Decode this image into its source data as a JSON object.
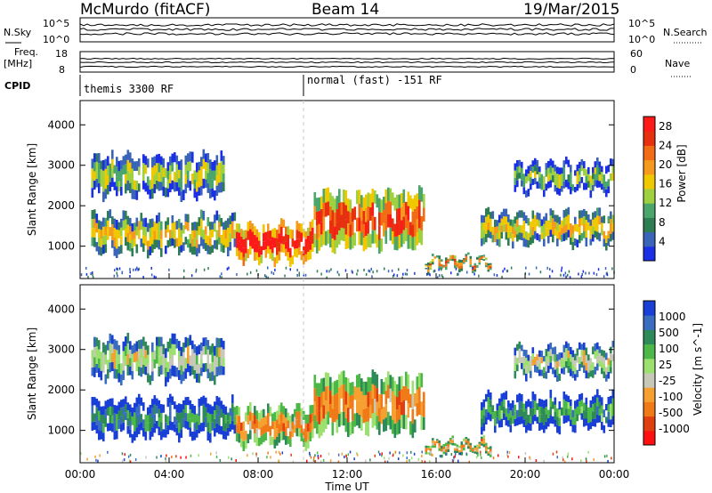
{
  "header": {
    "radar": "McMurdo (fitACF)",
    "beam": "Beam 14",
    "date": "19/Mar/2015"
  },
  "status_panels": {
    "nsky_label": "N.Sky",
    "nsearch_label": "N.Search",
    "noise_ticks_left": [
      "10^5",
      "10^0"
    ],
    "noise_ticks_right": [
      "10^5",
      "10^0"
    ],
    "freq_label_top": "Freq.",
    "freq_label_unit": "[MHz]",
    "freq_ticks": [
      "18",
      "8"
    ],
    "nave_label": "Nave",
    "nave_ticks": [
      "60",
      "0"
    ],
    "cpid_label": "CPID",
    "cpid_modes": [
      "themis 3300 RF",
      "normal (fast) -151 RF"
    ]
  },
  "colors": {
    "power_scale": [
      "#1a2fe6",
      "#3a64b8",
      "#2f7d52",
      "#4aa66a",
      "#9fd040",
      "#f0c800",
      "#f59a1e",
      "#f26c15",
      "#e63010",
      "#ff1a1a"
    ],
    "velocity_scale": [
      "#1a3fd6",
      "#3a6cc0",
      "#2f8a5a",
      "#4cb848",
      "#9ce070",
      "#c8c8b8",
      "#f5a030",
      "#f07a18",
      "#e04010",
      "#ff1010"
    ]
  },
  "chart_data": [
    {
      "type": "heatmap",
      "name": "power",
      "ylabel": "Slant Range [km]",
      "yticks": [
        "1000",
        "2000",
        "3000",
        "4000"
      ],
      "ylim": [
        200,
        4600
      ],
      "colorbar_label": "Power [dB]",
      "colorbar_ticks": [
        "4",
        "8",
        "12",
        "16",
        "20",
        "24",
        "28"
      ],
      "colorbar_range": [
        0,
        30
      ],
      "bands": [
        {
          "start_h": 0.5,
          "end_h": 6.5,
          "range_km": [
            2200,
            3300
          ],
          "level": 0.45
        },
        {
          "start_h": 0.5,
          "end_h": 7.0,
          "range_km": [
            800,
            1800
          ],
          "level": 0.55
        },
        {
          "start_h": 7.0,
          "end_h": 10.5,
          "range_km": [
            600,
            1600
          ],
          "level": 0.95
        },
        {
          "start_h": 10.5,
          "end_h": 15.5,
          "range_km": [
            900,
            2400
          ],
          "level": 0.8
        },
        {
          "start_h": 15.5,
          "end_h": 18.5,
          "range_km": [
            400,
            800
          ],
          "level": 0.7
        },
        {
          "start_h": 18.0,
          "end_h": 24.0,
          "range_km": [
            1000,
            1900
          ],
          "level": 0.55
        },
        {
          "start_h": 19.5,
          "end_h": 24.0,
          "range_km": [
            2300,
            3100
          ],
          "level": 0.4
        }
      ]
    },
    {
      "type": "heatmap",
      "name": "velocity",
      "xlabel": "Time UT",
      "ylabel": "Slant Range [km]",
      "xticks": [
        "00:00",
        "04:00",
        "08:00",
        "12:00",
        "16:00",
        "20:00",
        "00:00"
      ],
      "xlim_hours": [
        0,
        24
      ],
      "yticks": [
        "1000",
        "2000",
        "3000",
        "4000"
      ],
      "ylim": [
        200,
        4600
      ],
      "colorbar_label": "Velocity [m s^-1]",
      "colorbar_ticks": [
        "1000",
        "500",
        "100",
        "25",
        "-25",
        "-100",
        "-500",
        "-1000"
      ],
      "bands": [
        {
          "start_h": 0.5,
          "end_h": 6.5,
          "range_km": [
            2200,
            3300
          ],
          "level": 0.5
        },
        {
          "start_h": 0.5,
          "end_h": 7.0,
          "range_km": [
            800,
            1800
          ],
          "level": 0.25
        },
        {
          "start_h": 7.0,
          "end_h": 10.5,
          "range_km": [
            600,
            1600
          ],
          "level": 0.7
        },
        {
          "start_h": 10.5,
          "end_h": 15.5,
          "range_km": [
            900,
            2400
          ],
          "level": 0.72
        },
        {
          "start_h": 15.5,
          "end_h": 18.5,
          "range_km": [
            400,
            800
          ],
          "level": 0.68
        },
        {
          "start_h": 18.0,
          "end_h": 24.0,
          "range_km": [
            1000,
            1900
          ],
          "level": 0.3
        },
        {
          "start_h": 19.5,
          "end_h": 24.0,
          "range_km": [
            2300,
            3100
          ],
          "level": 0.5
        }
      ]
    }
  ]
}
